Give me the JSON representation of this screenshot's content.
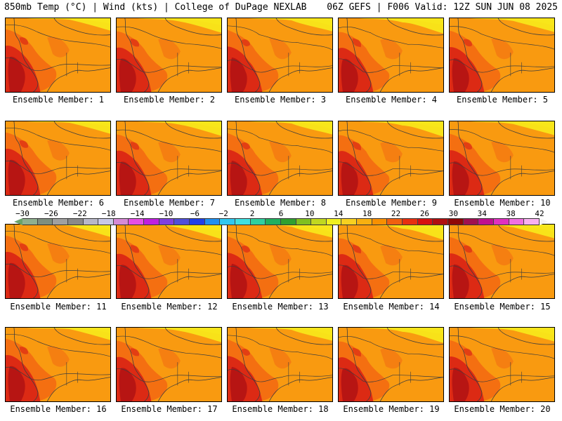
{
  "header": {
    "left": "850mb Temp (°C) | Wind (kts) | College of DuPage NEXLAB",
    "right": "06Z GEFS | F006 Valid: 12Z SUN JUN 08 2025"
  },
  "members": [
    "Ensemble Member: 1",
    "Ensemble Member: 2",
    "Ensemble Member: 3",
    "Ensemble Member: 4",
    "Ensemble Member: 5",
    "Ensemble Member: 6",
    "Ensemble Member: 7",
    "Ensemble Member: 8",
    "Ensemble Member: 9",
    "Ensemble Member: 10",
    "Ensemble Member: 11",
    "Ensemble Member: 12",
    "Ensemble Member: 13",
    "Ensemble Member: 14",
    "Ensemble Member: 15",
    "Ensemble Member: 16",
    "Ensemble Member: 17",
    "Ensemble Member: 18",
    "Ensemble Member: 19",
    "Ensemble Member: 20"
  ],
  "colorbar": {
    "labels": [
      "−30",
      "−26",
      "−22",
      "−18",
      "−14",
      "−10",
      "−6",
      "−2",
      "2",
      "6",
      "10",
      "14",
      "18",
      "22",
      "26",
      "30",
      "34",
      "38",
      "42"
    ],
    "colors": [
      "#8fb08f",
      "#7f8f7f",
      "#a0a0a0",
      "#8a8a8a",
      "#b8b8c8",
      "#c8c8e8",
      "#d68ad6",
      "#e64fe6",
      "#c020e0",
      "#8040e0",
      "#5050d8",
      "#2040e8",
      "#2090f0",
      "#30c8f0",
      "#40e0e0",
      "#30d0a0",
      "#20b060",
      "#30a030",
      "#80c020",
      "#c0d820",
      "#f0f020",
      "#f8d020",
      "#f8b010",
      "#f89000",
      "#f06010",
      "#e83010",
      "#d81010",
      "#b01010",
      "#900808",
      "#a01050",
      "#c01090",
      "#e030c0",
      "#f070e0",
      "#f8b0f0"
    ]
  },
  "map_colors": {
    "background": "#f99a10",
    "north": "#f8e61a",
    "warm": "#f36a12",
    "hot": "#dc2a14",
    "core": "#b71513",
    "contour": "#3d3d3d"
  }
}
